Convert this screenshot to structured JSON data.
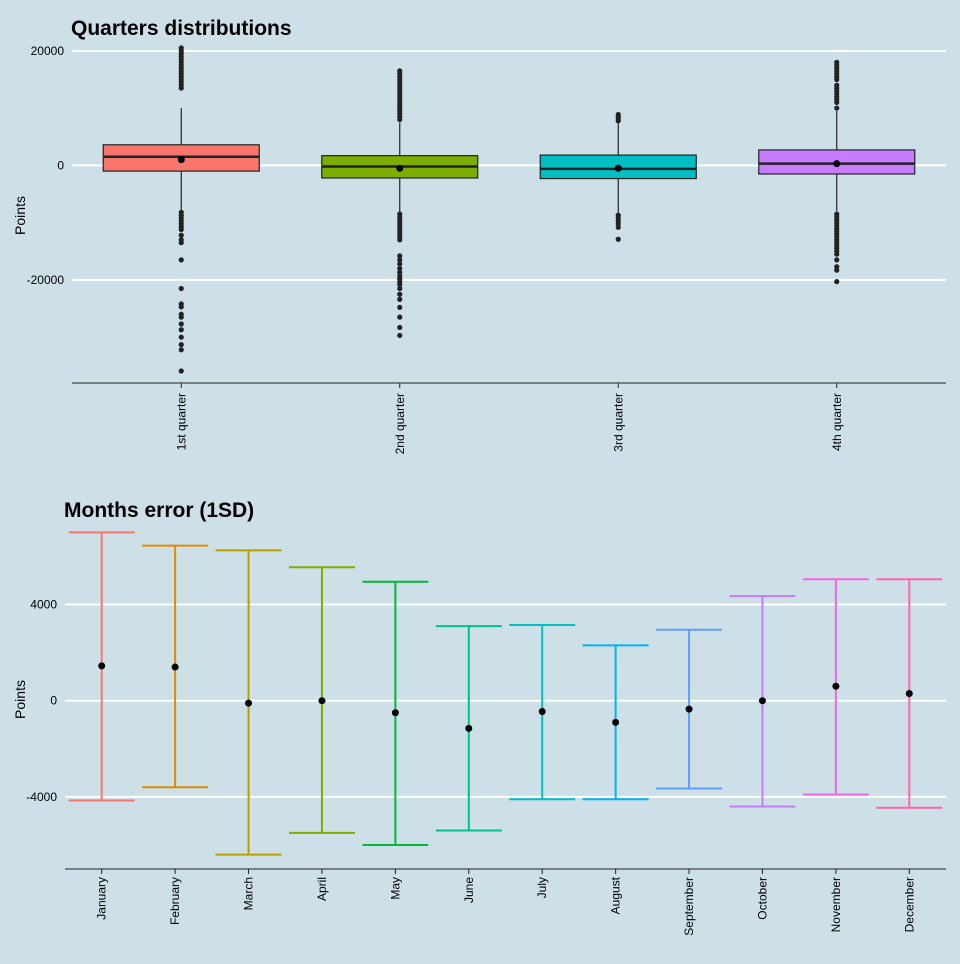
{
  "chart_data": [
    {
      "type": "box",
      "title": "Quarters distributions",
      "xlabel": "",
      "ylabel": "Points",
      "ylim": [
        -38000,
        20500
      ],
      "yticks": [
        20000,
        0,
        -20000
      ],
      "ytick_labels": [
        "20000",
        "0",
        "-20000"
      ],
      "grid": "horizontal",
      "categories": [
        "1st quarter",
        "2nd quarter",
        "3rd quarter",
        "4th quarter"
      ],
      "colors": [
        "#f8766d",
        "#7cae00",
        "#00bfc4",
        "#c77cff"
      ],
      "boxes": [
        {
          "q1": -1000,
          "median": 1500,
          "q3": 3600,
          "whisker_low": -8000,
          "whisker_high": 10000,
          "mean": 1000,
          "outliers": [
            20500,
            20000,
            19500,
            19000,
            18500,
            18000,
            17500,
            17000,
            16500,
            16000,
            15500,
            15000,
            14500,
            14000,
            13500,
            -8200,
            -8700,
            -9200,
            -9700,
            -10200,
            -10700,
            -11200,
            -12200,
            -13000,
            -13500,
            -16500,
            -21500,
            -24200,
            -24700,
            -26000,
            -26500,
            -27700,
            -28700,
            -30000,
            -31300,
            -32200,
            -35900
          ]
        },
        {
          "q1": -2200,
          "median": -200,
          "q3": 1700,
          "whisker_low": -8300,
          "whisker_high": 7500,
          "mean": -500,
          "outliers": [
            16500,
            16000,
            15500,
            15000,
            14500,
            14000,
            13500,
            13000,
            12500,
            12000,
            11500,
            11000,
            10500,
            10000,
            9500,
            9000,
            8500,
            8000,
            -8500,
            -9000,
            -9500,
            -10000,
            -10500,
            -11000,
            -11500,
            -12000,
            -12500,
            -13000,
            -15800,
            -16500,
            -17200,
            -18000,
            -18700,
            -19300,
            -19800,
            -20300,
            -20800,
            -21500,
            -22500,
            -23400,
            -24800,
            -26500,
            -28300,
            -29700
          ]
        },
        {
          "q1": -2300,
          "median": -600,
          "q3": 1800,
          "whisker_low": -8500,
          "whisker_high": 7500,
          "mean": -500,
          "outliers": [
            8900,
            8500,
            8200,
            7800,
            -8700,
            -9200,
            -9700,
            -10200,
            -10800,
            -12900
          ]
        },
        {
          "q1": -1500,
          "median": 300,
          "q3": 2700,
          "whisker_low": -8000,
          "whisker_high": 9500,
          "mean": 300,
          "outliers": [
            18000,
            17500,
            17000,
            16500,
            16000,
            15500,
            15000,
            14000,
            13500,
            13000,
            12500,
            12000,
            11500,
            11000,
            10000,
            -8500,
            -9000,
            -9500,
            -10000,
            -10500,
            -11000,
            -11500,
            -12000,
            -12500,
            -13000,
            -13500,
            -14000,
            -14500,
            -15000,
            -15500,
            -16500,
            -17700,
            -18300,
            -20300
          ]
        }
      ]
    },
    {
      "type": "errorbar",
      "title": "Months error (1SD)",
      "xlabel": "",
      "ylabel": "Points",
      "ylim": [
        -7000,
        7100
      ],
      "yticks": [
        4000,
        0,
        -4000
      ],
      "ytick_labels": [
        "4000",
        "0",
        "-4000"
      ],
      "grid": "horizontal",
      "categories": [
        "January",
        "February",
        "March",
        "April",
        "May",
        "June",
        "July",
        "August",
        "September",
        "October",
        "November",
        "December"
      ],
      "colors": [
        "#f8766d",
        "#de8c00",
        "#b79f00",
        "#7cae00",
        "#00ba38",
        "#00c08b",
        "#00bfc4",
        "#00b4f0",
        "#619cff",
        "#c77cff",
        "#f564e3",
        "#ff64b0"
      ],
      "means": [
        1450,
        1400,
        -100,
        0,
        -500,
        -1150,
        -450,
        -900,
        -350,
        0,
        600,
        300
      ],
      "upper": [
        7000,
        6450,
        6250,
        5550,
        4950,
        3100,
        3150,
        2300,
        2950,
        4350,
        5050,
        5050
      ],
      "lower": [
        -4150,
        -3600,
        -6400,
        -5500,
        -6000,
        -5400,
        -4100,
        -4100,
        -3650,
        -4400,
        -3900,
        -4450
      ]
    }
  ]
}
